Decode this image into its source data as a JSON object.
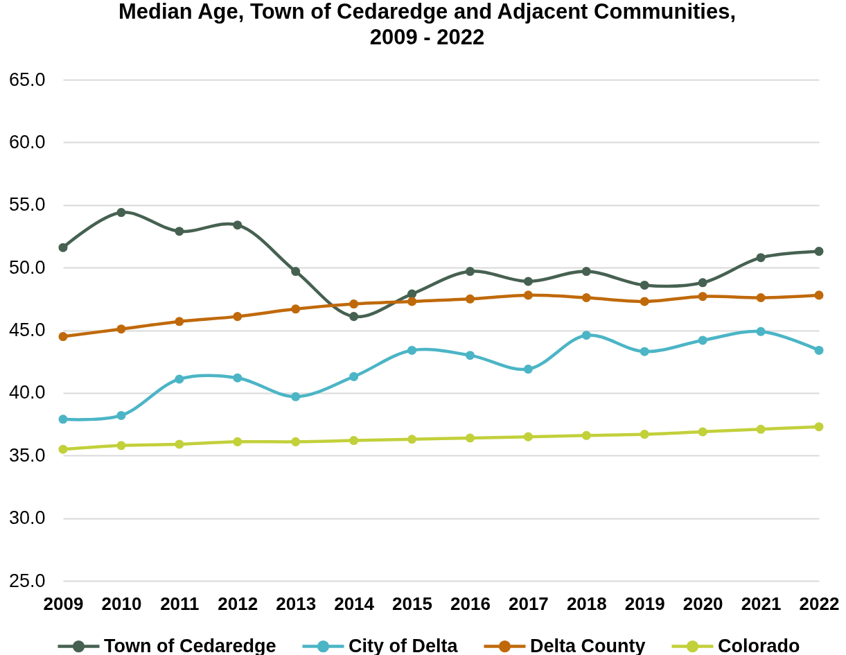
{
  "chart_data": {
    "type": "line",
    "title": "Median Age, Town of Cedaredge and Adjacent Communities,\n2009 - 2022",
    "categories": [
      "2009",
      "2010",
      "2011",
      "2012",
      "2013",
      "2014",
      "2015",
      "2016",
      "2017",
      "2018",
      "2019",
      "2020",
      "2021",
      "2022"
    ],
    "series": [
      {
        "name": "Town of Cedaredge",
        "color": "#466151",
        "values": [
          51.6,
          54.4,
          52.9,
          53.4,
          49.7,
          46.1,
          47.9,
          49.7,
          48.9,
          49.7,
          48.6,
          48.8,
          50.8,
          51.3
        ]
      },
      {
        "name": "City of Delta",
        "color": "#4bb5c6",
        "values": [
          37.9,
          38.2,
          41.1,
          41.2,
          39.7,
          41.3,
          43.4,
          43.0,
          41.9,
          44.6,
          43.3,
          44.2,
          44.9,
          43.4
        ]
      },
      {
        "name": "Delta County",
        "color": "#c0690a",
        "values": [
          44.5,
          45.1,
          45.7,
          46.1,
          46.7,
          47.1,
          47.3,
          47.5,
          47.8,
          47.6,
          47.3,
          47.7,
          47.6,
          47.8
        ]
      },
      {
        "name": "Colorado",
        "color": "#c2d03a",
        "values": [
          35.5,
          35.8,
          35.9,
          36.1,
          36.1,
          36.2,
          36.3,
          36.4,
          36.5,
          36.6,
          36.7,
          36.9,
          37.1,
          37.3
        ]
      }
    ],
    "ylim": [
      25,
      65
    ],
    "yticks": [
      {
        "value": 25,
        "label": "25.0"
      },
      {
        "value": 30,
        "label": "30.0"
      },
      {
        "value": 35,
        "label": "35.0"
      },
      {
        "value": 40,
        "label": "40.0"
      },
      {
        "value": 45,
        "label": "45.0"
      },
      {
        "value": 50,
        "label": "50.0"
      },
      {
        "value": 55,
        "label": "55.0"
      },
      {
        "value": 60,
        "label": "60.0"
      },
      {
        "value": 65,
        "label": "65.0"
      }
    ],
    "grid": "y",
    "legend": "bottom",
    "marker": "circle"
  }
}
